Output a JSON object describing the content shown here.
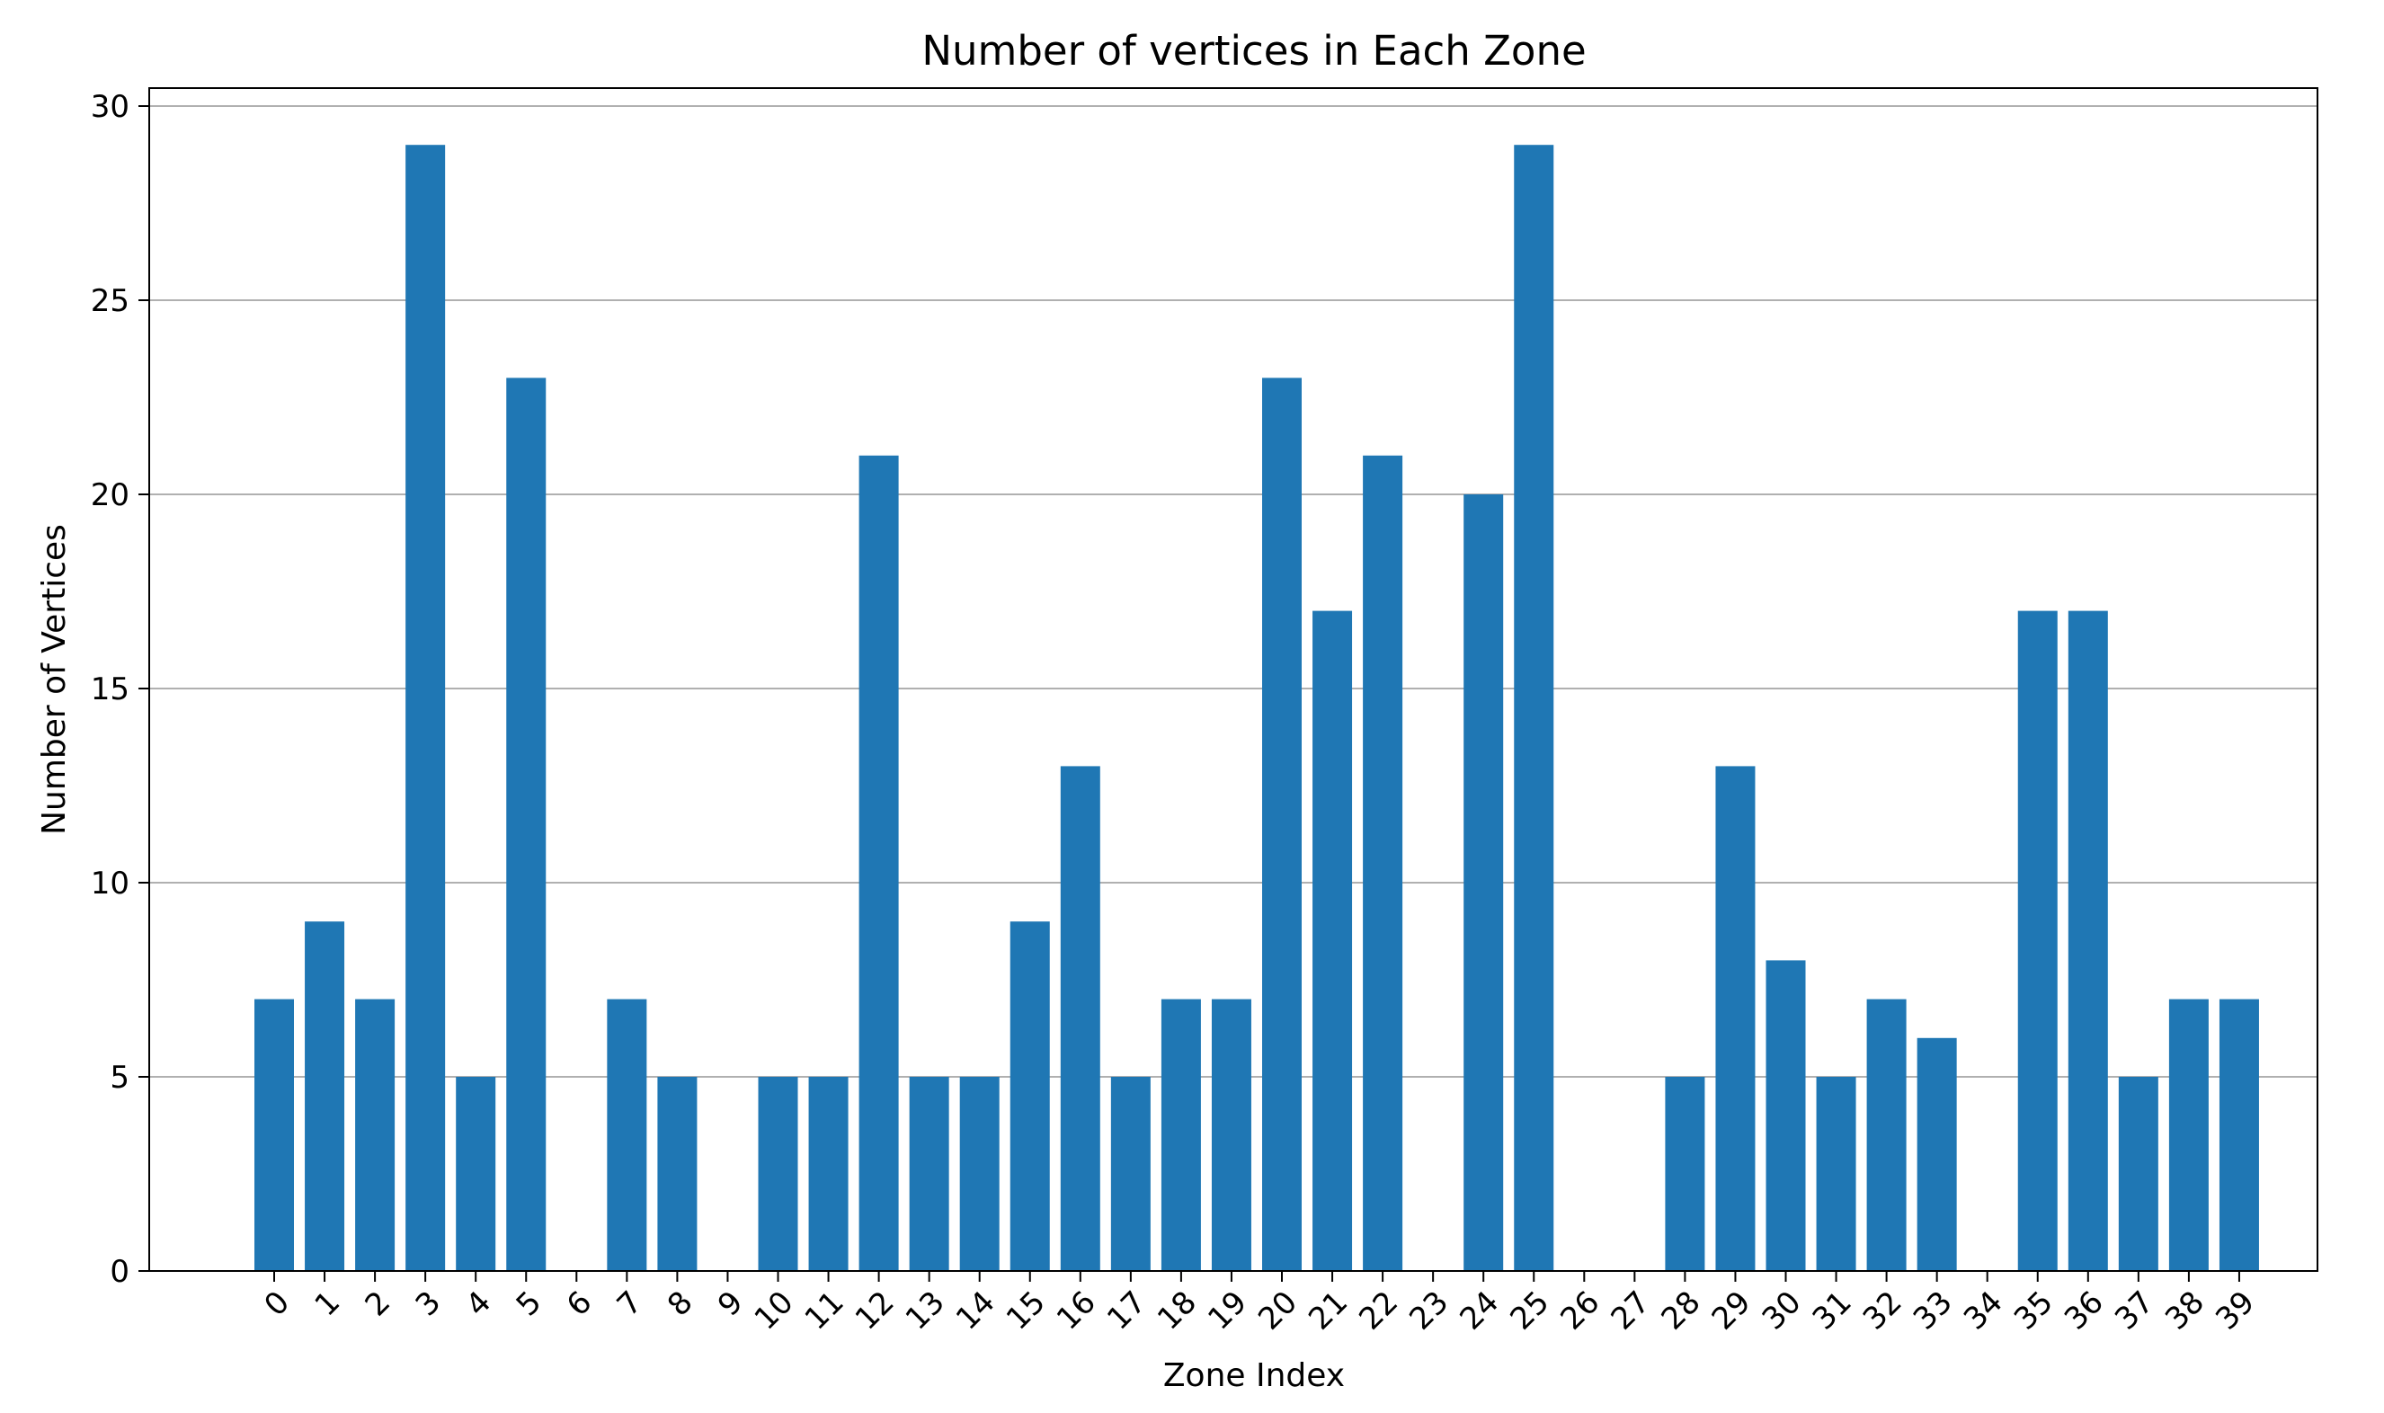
{
  "chart_data": {
    "type": "bar",
    "title": "Number of vertices in Each Zone",
    "xlabel": "Zone Index",
    "ylabel": "Number of Vertices",
    "categories": [
      "0",
      "1",
      "2",
      "3",
      "4",
      "5",
      "6",
      "7",
      "8",
      "9",
      "10",
      "11",
      "12",
      "13",
      "14",
      "15",
      "16",
      "17",
      "18",
      "19",
      "20",
      "21",
      "22",
      "23",
      "24",
      "25",
      "26",
      "27",
      "28",
      "29",
      "30",
      "31",
      "32",
      "33",
      "34",
      "35",
      "36",
      "37",
      "38",
      "39"
    ],
    "values": [
      7,
      9,
      7,
      29,
      5,
      23,
      0,
      7,
      5,
      0,
      5,
      5,
      21,
      5,
      5,
      9,
      13,
      5,
      7,
      7,
      23,
      17,
      21,
      0,
      20,
      29,
      0,
      0,
      5,
      13,
      8,
      5,
      7,
      6,
      0,
      17,
      17,
      5,
      7,
      7
    ],
    "ylim": [
      0,
      30
    ],
    "yticks": [
      0,
      5,
      10,
      15,
      20,
      25,
      30
    ],
    "grid": "y",
    "bar_color": "#1f77b4",
    "legend": "none"
  }
}
